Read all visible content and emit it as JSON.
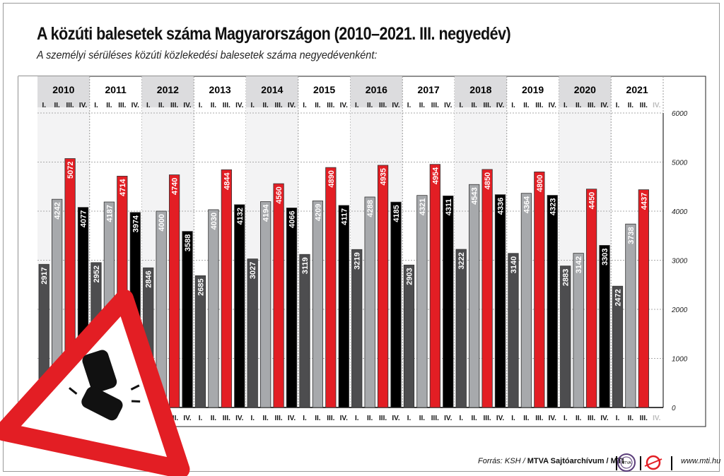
{
  "chart_data": {
    "type": "bar",
    "title": "A közúti balesetek száma Magyarországon (2010–2021. III. negyedév)",
    "subtitle": "A személyi sérüléses közúti közlekedési balesetek száma negyedévenként:",
    "years": [
      "2010",
      "2011",
      "2012",
      "2013",
      "2014",
      "2015",
      "2016",
      "2017",
      "2018",
      "2019",
      "2020",
      "2021"
    ],
    "quarters": [
      "I.",
      "II.",
      "III.",
      "IV."
    ],
    "series": [
      {
        "name": "I.",
        "color": "#4d4d4f",
        "values": [
          2917,
          2952,
          2846,
          2685,
          3027,
          3119,
          3219,
          2903,
          3222,
          3140,
          2883,
          2472
        ]
      },
      {
        "name": "II.",
        "color": "#a7a9ac",
        "values": [
          4242,
          4187,
          4000,
          4030,
          4194,
          4209,
          4288,
          4321,
          4543,
          4364,
          3142,
          3738
        ]
      },
      {
        "name": "III.",
        "color": "#e31e24",
        "values": [
          5072,
          4714,
          4740,
          4844,
          4560,
          4890,
          4935,
          4954,
          4850,
          4800,
          4450,
          4437
        ]
      },
      {
        "name": "IV.",
        "color": "#000000",
        "values": [
          4077,
          3974,
          3588,
          4132,
          4066,
          4117,
          4185,
          4311,
          4336,
          4323,
          3303,
          null
        ]
      }
    ],
    "ylim": [
      0,
      6000
    ],
    "yticks": [
      "0",
      "1000",
      "2000",
      "3000",
      "4000",
      "5000",
      "6000"
    ],
    "grid": true,
    "ylabel": "",
    "xlabel": ""
  },
  "footer": {
    "source_prefix": "Forrás: KSH / ",
    "source_bold": "MTVA Sajtóarchívum / MTI",
    "logo1": "MTVA",
    "url": "www.mti.hu"
  }
}
